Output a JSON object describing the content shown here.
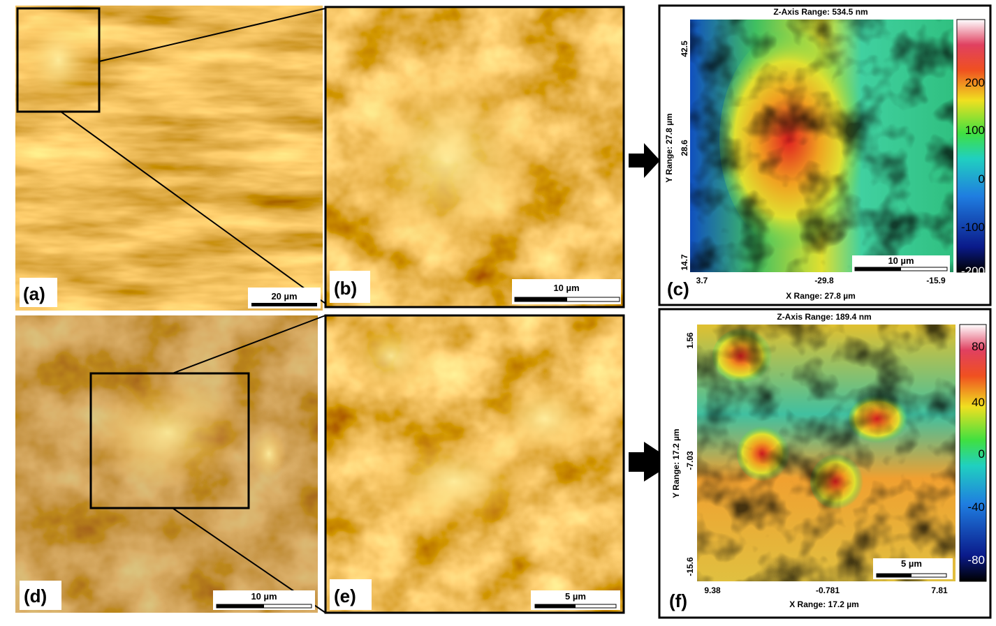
{
  "panels": [
    {
      "label": "(a)",
      "scale_bar": "20 µm"
    },
    {
      "label": "(b)",
      "scale_bar": "10 µm"
    },
    {
      "label": "(c)",
      "scale_bar": "10 µm"
    },
    {
      "label": "(d)",
      "scale_bar": "10 µm"
    },
    {
      "label": "(e)",
      "scale_bar": "5 µm"
    },
    {
      "label": "(f)",
      "scale_bar": "5 µm"
    }
  ],
  "maps": [
    {
      "z_range": "Z-Axis Range:  534.5 nm",
      "y_range": "Y Range:  27.8 µm",
      "x_range": "X Range:  27.8 µm",
      "y_ticks": [
        "42.5",
        "28.6",
        "14.7"
      ],
      "x_ticks": [
        "3.7",
        "-29.8",
        "-15.9"
      ],
      "colorbar_ticks": [
        "200",
        "100",
        "0",
        "-100",
        "-200"
      ]
    },
    {
      "z_range": "Z-Axis Range:  189.4 nm",
      "y_range": "Y Range:  17.2 µm",
      "x_range": "X Range:  17.2 µm",
      "y_ticks": [
        "1.56",
        "-7.03",
        "-15.6"
      ],
      "x_ticks": [
        "9.38",
        "-0.781",
        "7.81"
      ],
      "colorbar_ticks": [
        "80",
        "40",
        "0",
        "-40",
        "-80"
      ]
    }
  ]
}
